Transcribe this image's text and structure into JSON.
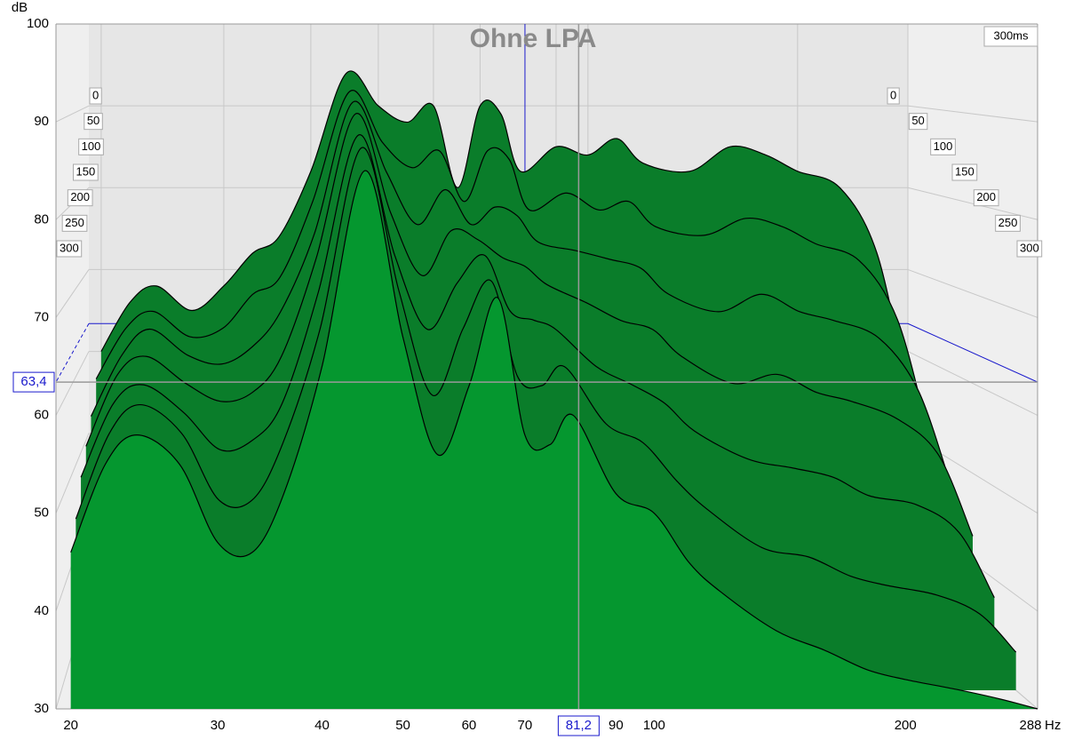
{
  "chart_data": {
    "type": "waterfall",
    "title": "Ohne LPA",
    "y_label": "dB",
    "x_unit": "Hz",
    "time_end_label": "300ms",
    "log_x": true,
    "grid": true,
    "xlim": [
      19.2,
      288
    ],
    "xticks": [
      20,
      30,
      40,
      50,
      60,
      70,
      90,
      100,
      200,
      288
    ],
    "ylim": [
      30,
      100
    ],
    "yticks": [
      30,
      40,
      50,
      60,
      70,
      80,
      90,
      100
    ],
    "zlim": [
      0,
      300
    ],
    "zticks": [
      0,
      50,
      100,
      150,
      200,
      250,
      300
    ],
    "cursor": {
      "x": 81.2,
      "x_label": "81,2",
      "y": 63.4,
      "y_label": "63,4"
    },
    "x": [
      20,
      22,
      24,
      27,
      30,
      33,
      36,
      40,
      45,
      50,
      55,
      60,
      65,
      70,
      75,
      80,
      90,
      100,
      110,
      120,
      140,
      160,
      180,
      200,
      230,
      260,
      288
    ],
    "series": [
      {
        "time": 0,
        "color": "#0a7d2a",
        "values": [
          60,
          66,
          68,
          65,
          68,
          72,
          74,
          82,
          94,
          90,
          88,
          90,
          80,
          90,
          89,
          82,
          85,
          84,
          86,
          83,
          82,
          85,
          84,
          82,
          80,
          72,
          55
        ]
      },
      {
        "time": 50,
        "color": "#0a7d2a",
        "values": [
          58,
          64,
          66,
          63,
          64,
          68,
          70,
          79,
          92,
          86,
          83,
          85,
          79,
          85,
          84,
          78,
          80,
          78,
          79,
          76,
          75,
          77,
          76,
          74,
          72,
          65,
          51
        ]
      },
      {
        "time": 100,
        "color": "#0a7d2a",
        "values": [
          55,
          62,
          65,
          62,
          61,
          63,
          67,
          76,
          91,
          83,
          77,
          81,
          77,
          79,
          78,
          75,
          74,
          73,
          72,
          69,
          67,
          69,
          67,
          66,
          64,
          58,
          47
        ]
      },
      {
        "time": 150,
        "color": "#0a7d2a",
        "values": [
          53,
          61,
          63,
          60,
          58,
          59,
          63,
          74,
          90,
          79,
          72,
          77,
          76,
          74,
          73,
          71,
          69,
          67,
          66,
          63,
          60,
          61,
          59,
          58,
          56,
          52,
          43
        ]
      },
      {
        "time": 200,
        "color": "#0a7d2a",
        "values": [
          51,
          59,
          61,
          58,
          54,
          55,
          59,
          71,
          88,
          75,
          67,
          72,
          75,
          69,
          68,
          67,
          63,
          61,
          59,
          56,
          53,
          52,
          51,
          49,
          48,
          45,
          38
        ]
      },
      {
        "time": 250,
        "color": "#0a7d2a",
        "values": [
          48,
          57,
          60,
          57,
          50,
          50,
          56,
          68,
          87,
          72,
          61,
          68,
          73,
          63,
          62,
          64,
          58,
          56,
          52,
          49,
          45,
          44,
          42,
          41,
          40,
          38,
          34
        ]
      },
      {
        "time": 300,
        "color": "#05972f",
        "values": [
          46,
          55,
          58,
          55,
          47,
          46,
          52,
          65,
          85,
          68,
          56,
          63,
          72,
          58,
          57,
          60,
          52,
          50,
          45,
          42,
          38,
          36,
          34,
          33,
          32,
          31,
          30
        ]
      }
    ]
  }
}
